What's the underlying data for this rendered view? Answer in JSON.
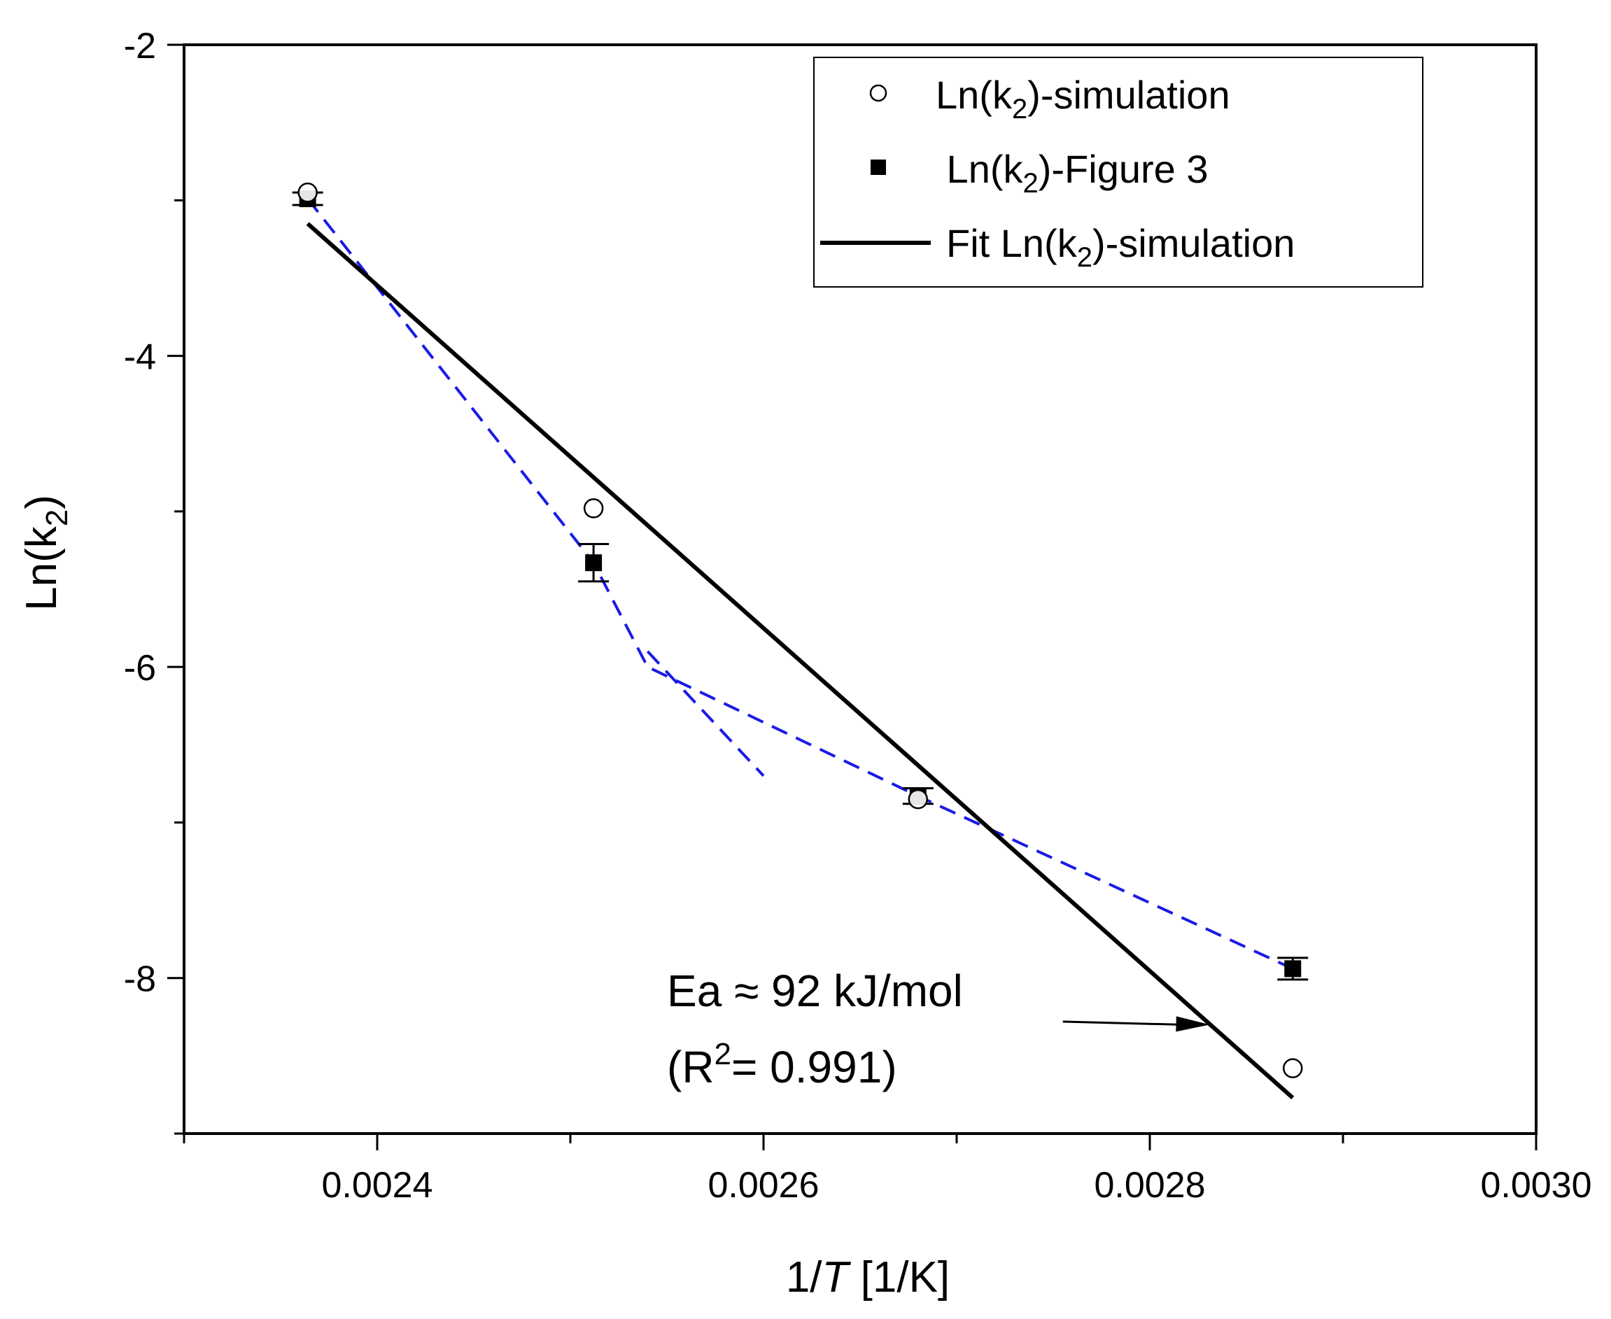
{
  "chart_data": {
    "type": "scatter",
    "title": "",
    "xlabel": {
      "prefix": "1/",
      "italic": "T",
      "suffix": " [1/K]"
    },
    "ylabel": {
      "base": "Ln(k",
      "sub": "2",
      "close": ")"
    },
    "xlim": [
      0.0023,
      0.003
    ],
    "ylim": [
      -9,
      -2
    ],
    "x_ticks": [
      0.0024,
      0.0026,
      0.0028,
      0.003
    ],
    "x_tick_labels": [
      "0.0024",
      "0.0026",
      "0.0028",
      "0.0030"
    ],
    "x_minor_ticks": [
      0.0023,
      0.0025,
      0.0027,
      0.0029
    ],
    "y_ticks": [
      -2,
      -4,
      -6,
      -8
    ],
    "y_tick_labels": [
      "-2",
      "-4",
      "-6",
      "-8"
    ],
    "y_minor_ticks": [
      -3,
      -5,
      -7,
      -9
    ],
    "grid": false,
    "legend_position": "top-right",
    "series": [
      {
        "name": "Ln(k2)-simulation",
        "legend": {
          "base": "Ln(k",
          "sub": "2",
          "rest": ")-simulation"
        },
        "marker": "open-circle",
        "x": [
          0.002364,
          0.002512,
          0.00268,
          0.002874
        ],
        "y": [
          -2.95,
          -4.98,
          -6.85,
          -8.58
        ]
      },
      {
        "name": "Ln(k2)-Figure 3",
        "legend": {
          "base": " Ln(k",
          "sub": "2",
          "rest": ")-Figure 3"
        },
        "marker": "filled-square",
        "x": [
          0.002364,
          0.002512,
          0.00268,
          0.002874
        ],
        "y": [
          -2.99,
          -5.33,
          -6.83,
          -7.94
        ],
        "error": [
          0.04,
          0.12,
          0.05,
          0.07
        ]
      },
      {
        "name": "Fit Ln(k2)-simulation",
        "legend": {
          "base": "Fit Ln(k",
          "sub": "2",
          "rest": ")-simulation"
        },
        "style": "solid-line",
        "x": [
          0.002364,
          0.002874
        ],
        "y": [
          -3.15,
          -8.77
        ]
      },
      {
        "name": "dashed guide",
        "style": "dashed-line",
        "color": "#1a1ae6",
        "x": [
          0.002364,
          0.002512,
          0.00254,
          0.00268,
          0.002874
        ],
        "y": [
          -2.99,
          -5.33,
          -6.0,
          -6.83,
          -7.94
        ]
      },
      {
        "name": "dashed guide branch",
        "style": "dashed-line",
        "color": "#1a1ae6",
        "x": [
          0.00254,
          0.0026
        ],
        "y": [
          -5.9,
          -6.7
        ]
      }
    ],
    "annotation": {
      "line1": "Ea ≈ 92 kJ/mol",
      "line2_prefix": "(R",
      "line2_sup": "2",
      "line2_suffix": "= 0.991)",
      "arrow_from": [
        0.002755,
        -8.28
      ],
      "arrow_to": [
        0.002831,
        -8.3
      ]
    },
    "colors": {
      "axis": "#000000",
      "dashed": "#1a1ae6",
      "marker": "#000000"
    }
  }
}
